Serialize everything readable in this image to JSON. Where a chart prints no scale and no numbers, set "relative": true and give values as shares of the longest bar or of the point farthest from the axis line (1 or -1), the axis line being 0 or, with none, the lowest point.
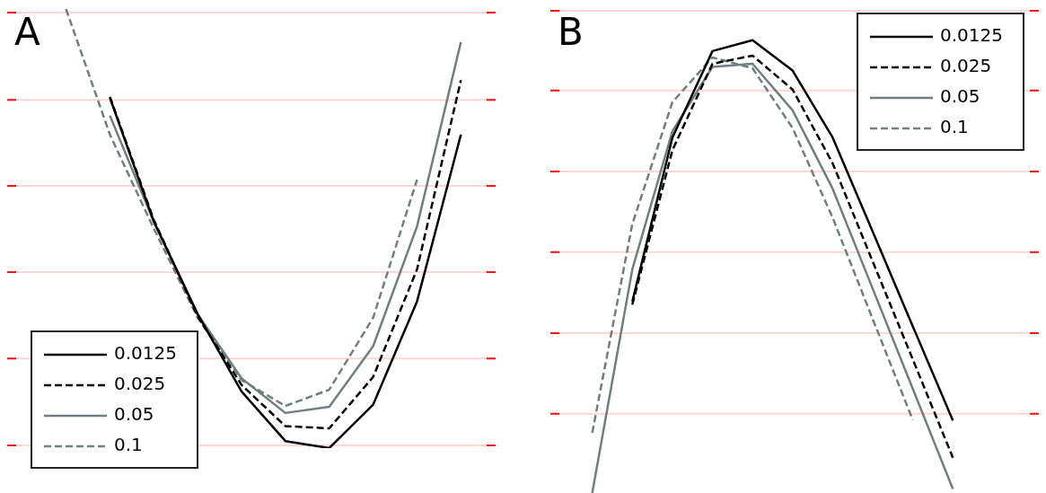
{
  "chart_data": [
    {
      "type": "line",
      "title": "A",
      "relative": true,
      "legend": "bottom left",
      "ref_lines": [
        {
          "axis": "y",
          "value": 0.006,
          "color": "#ffd6d6"
        },
        {
          "axis": "y",
          "value": 0.204,
          "color": "#ffd6d6"
        },
        {
          "axis": "y",
          "value": 0.401,
          "color": "#ffd6d6"
        },
        {
          "axis": "y",
          "value": 0.597,
          "color": "#ffd6d6"
        },
        {
          "axis": "y",
          "value": 0.793,
          "color": "#ffd6d6"
        },
        {
          "axis": "y",
          "value": 0.992,
          "color": "#ffd6d6"
        }
      ],
      "categories": [
        null,
        null,
        null,
        null,
        null,
        null,
        null,
        null,
        null,
        null,
        null
      ],
      "series": [
        {
          "name": "0.0125",
          "color": "#000000",
          "line_style": "solid",
          "values": [
            null,
            0.798,
            0.516,
            0.305,
            0.129,
            0.016,
            0,
            0.099,
            0.334,
            0.714,
            null
          ]
        },
        {
          "name": "0.025",
          "color": "#000000",
          "line_style": "dashed",
          "values": [
            null,
            0.8,
            0.52,
            0.3,
            0.144,
            0.05,
            0.045,
            0.162,
            0.407,
            0.838,
            null
          ]
        },
        {
          "name": "0.05",
          "color": "#6f7f80",
          "line_style": "solid",
          "values": [
            null,
            0.757,
            0.516,
            0.305,
            0.159,
            0.08,
            0.094,
            0.232,
            0.505,
            0.925,
            null
          ]
        },
        {
          "name": "0.1",
          "color": "#6f7f80",
          "line_style": "dashed",
          "values": [
            1,
            0.714,
            0.5,
            0.297,
            0.155,
            0.096,
            0.133,
            0.297,
            0.611,
            null,
            null
          ]
        }
      ]
    },
    {
      "type": "line",
      "title": "B",
      "relative": true,
      "legend": "top right",
      "ref_lines": [
        {
          "axis": "y",
          "value": 0.175,
          "color": "#ffd6d6"
        },
        {
          "axis": "y",
          "value": 0.353,
          "color": "#ffd6d6"
        },
        {
          "axis": "y",
          "value": 0.532,
          "color": "#ffd6d6"
        },
        {
          "axis": "y",
          "value": 0.71,
          "color": "#ffd6d6"
        },
        {
          "axis": "y",
          "value": 0.889,
          "color": "#ffd6d6"
        },
        {
          "axis": "y",
          "value": 1.065,
          "color": "#ffd6d6"
        }
      ],
      "categories": [
        null,
        null,
        null,
        null,
        null,
        null,
        null,
        null,
        null,
        null,
        null
      ],
      "series": [
        {
          "name": "0.0125",
          "color": "#000000",
          "line_style": "solid",
          "values": [
            null,
            0.423,
            0.785,
            0.976,
            1,
            0.933,
            0.785,
            0.577,
            0.368,
            0.16,
            null
          ]
        },
        {
          "name": "0.025",
          "color": "#000000",
          "line_style": "dashed",
          "values": [
            null,
            0.416,
            0.757,
            0.948,
            0.966,
            0.891,
            0.728,
            0.511,
            0.295,
            0.078,
            null
          ]
        },
        {
          "name": "0.05",
          "color": "#6f7f80",
          "line_style": "solid",
          "values": [
            0,
            0.494,
            0.799,
            0.941,
            0.948,
            0.845,
            0.672,
            0.451,
            0.23,
            0.009,
            null
          ]
        },
        {
          "name": "0.1",
          "color": "#6f7f80",
          "line_style": "dashed",
          "values": [
            0.133,
            0.594,
            0.863,
            0.962,
            0.938,
            0.806,
            0.608,
            0.384,
            0.161,
            null,
            null
          ]
        }
      ]
    }
  ]
}
